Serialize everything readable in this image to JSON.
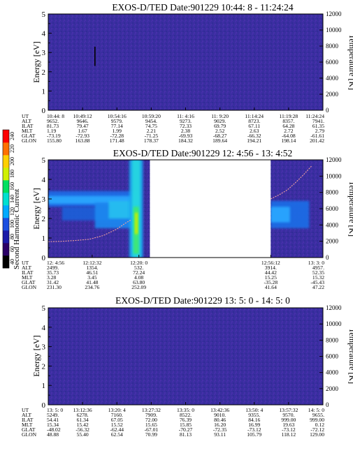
{
  "colorbar": {
    "label": "Second Harmonic Current",
    "ticks": [
      "40",
      "60",
      "80",
      "100",
      "120",
      "140",
      "160",
      "180",
      "200",
      "220",
      "240"
    ],
    "colors": [
      "#000000",
      "#2a0066",
      "#1a1aa8",
      "#1a4ee0",
      "#00aaff",
      "#00e0d0",
      "#00e060",
      "#d0f000",
      "#ffd000",
      "#ff7000",
      "#ff0000"
    ]
  },
  "chart_data": [
    {
      "type": "heatmap",
      "title": "EXOS-D/TED   Date:901229   10:44: 8 - 11:24:24",
      "ylabel": "Energy [eV]",
      "y2label": "Temperature [K]",
      "ylim": [
        0,
        5
      ],
      "y2lim": [
        0,
        12000
      ],
      "yticks": [
        "0",
        "1",
        "2",
        "3",
        "4",
        "5"
      ],
      "y2ticks": [
        "0",
        "2000",
        "4000",
        "6000",
        "8000",
        "10000",
        "12000"
      ],
      "background": "#3a2ea0",
      "segments": [
        [
          0,
          1
        ]
      ],
      "features": [
        {
          "kind": "vline",
          "x": 0.17,
          "y0": 2.3,
          "y1": 3.3,
          "color": "#000000"
        }
      ],
      "temperature_curve": [],
      "ephemeris": {
        "labels": [
          "UT",
          "ALT",
          "ILAT",
          "MLT",
          "GLAT",
          "GLON"
        ],
        "columns": [
          [
            "10:44: 8",
            "9652.",
            "81.73",
            "1.19",
            "-73.19",
            "155.80"
          ],
          [
            "10:49:12",
            "9646.",
            "79.47",
            "1.67",
            "-72.93",
            "163.88"
          ],
          [
            "10:54:16",
            "9579.",
            "77.14",
            "1.99",
            "-72.28",
            "171.48"
          ],
          [
            "10:59:20",
            "9454.",
            "74.75",
            "2.21",
            "-71.25",
            "178.37"
          ],
          [
            "11: 4:16",
            "9273.",
            "72.33",
            "2.38",
            "-69.93",
            "184.32"
          ],
          [
            "11: 9:20",
            "9029.",
            "69.79",
            "2.52",
            "-68.27",
            "189.64"
          ],
          [
            "11:14:24",
            "8723.",
            "67.11",
            "2.63",
            "-66.32",
            "194.21"
          ],
          [
            "11:19:28",
            "8357.",
            "64.28",
            "2.72",
            "-64.08",
            "198.14"
          ],
          [
            "11:24:24",
            "7941.",
            "61.35",
            "2.79",
            "-61.61",
            "201.42"
          ]
        ]
      }
    },
    {
      "type": "heatmap",
      "title": "EXOS-D/TED   Date:901229  12: 4:56 - 13: 4:52",
      "ylabel": "Energy [eV]",
      "y2label": "Temperature [K]",
      "ylim": [
        0,
        5
      ],
      "y2lim": [
        0,
        12000
      ],
      "yticks": [
        "0",
        "1",
        "2",
        "3",
        "4",
        "5"
      ],
      "y2ticks": [
        "0",
        "2000",
        "4000",
        "6000",
        "8000",
        "10000",
        "12000"
      ],
      "background": "#3a2ea0",
      "segments": [
        [
          0,
          0.37
        ],
        [
          0.81,
          1
        ]
      ],
      "features": [
        {
          "kind": "band",
          "x0": 0.0,
          "x1": 0.33,
          "y0": 2.6,
          "y1": 3.4,
          "color": "#1f6ee8"
        },
        {
          "kind": "band",
          "x0": 0.0,
          "x1": 0.33,
          "y0": 2.75,
          "y1": 3.15,
          "color": "#2aa8ff"
        },
        {
          "kind": "band",
          "x0": 0.05,
          "x1": 0.33,
          "y0": 1.9,
          "y1": 2.6,
          "color": "#1f5fd8"
        },
        {
          "kind": "band",
          "x0": 0.17,
          "x1": 0.33,
          "y0": 1.5,
          "y1": 2.8,
          "color": "#1e88f0"
        },
        {
          "kind": "band",
          "x0": 0.22,
          "x1": 0.33,
          "y0": 2.0,
          "y1": 2.9,
          "color": "#28c0f0"
        },
        {
          "kind": "band",
          "x0": 0.295,
          "x1": 0.345,
          "y0": 0,
          "y1": 5,
          "color": "#1da8f0"
        },
        {
          "kind": "band",
          "x0": 0.305,
          "x1": 0.335,
          "y0": 0,
          "y1": 5,
          "color": "#28d8e0"
        },
        {
          "kind": "band",
          "x0": 0.31,
          "x1": 0.33,
          "y0": 0.2,
          "y1": 2.6,
          "color": "#40e870"
        },
        {
          "kind": "band",
          "x0": 0.315,
          "x1": 0.327,
          "y0": 1.2,
          "y1": 2.3,
          "color": "#c8f000"
        },
        {
          "kind": "band",
          "x0": 0.81,
          "x1": 0.95,
          "y0": 1.5,
          "y1": 2.9,
          "color": "#1e6ee6"
        },
        {
          "kind": "band",
          "x0": 0.81,
          "x1": 0.88,
          "y0": 1.8,
          "y1": 2.6,
          "color": "#2aa8ff"
        }
      ],
      "temperature_curve": [
        {
          "seg": 0,
          "x": [
            0.0,
            0.05,
            0.1,
            0.15,
            0.2,
            0.25,
            0.28,
            0.3
          ],
          "y": [
            1950,
            2000,
            2100,
            2250,
            2700,
            3500,
            4200,
            4600
          ]
        },
        {
          "seg": 1,
          "x": [
            0.81,
            0.84,
            0.87,
            0.9,
            0.93,
            0.96
          ],
          "y": [
            7200,
            7700,
            8300,
            9200,
            10200,
            11300
          ]
        }
      ],
      "ephemeris": {
        "labels": [
          "UT",
          "ALT",
          "ILAT",
          "MLT",
          "GLAT",
          "GLON"
        ],
        "columns": [
          [
            "12: 4:56",
            "2499.",
            "35.73",
            "3.28",
            "31.42",
            "231.30"
          ],
          [
            "12:12:32",
            "1354.",
            "46.51",
            "3.45",
            "41.48",
            "234.76"
          ],
          [
            "12:20: 0",
            "532.",
            "72.24",
            "4.08",
            "63.80",
            "252.09"
          ],
          [
            "12:56:12",
            "3914.",
            "44.42",
            "15.25",
            "-35.28",
            "41.64"
          ],
          [
            "13: 3: 0",
            "4957.",
            "52.35",
            "15.32",
            "-45.43",
            "47.22"
          ]
        ],
        "positions": [
          0.0,
          0.16,
          0.33,
          0.81,
          1.0
        ]
      }
    },
    {
      "type": "heatmap",
      "title": "EXOS-D/TED   Date:901229  13: 5: 0 - 14: 5: 0",
      "ylabel": "Energy [eV]",
      "y2label": "Temperature [K]",
      "ylim": [
        0,
        5
      ],
      "y2lim": [
        0,
        12000
      ],
      "yticks": [
        "0",
        "1",
        "2",
        "3",
        "4",
        "5"
      ],
      "y2ticks": [
        "0",
        "2000",
        "4000",
        "6000",
        "8000",
        "10000",
        "12000"
      ],
      "background": "#3a2ea0",
      "segments": [
        [
          0,
          1
        ]
      ],
      "features": [],
      "temperature_curve": [],
      "ephemeris": {
        "labels": [
          "UT",
          "ALT",
          "ILAT",
          "MLT",
          "GLAT",
          "GLON"
        ],
        "columns": [
          [
            "13: 5: 0",
            "5249.",
            "54.41",
            "15.34",
            "-48.02",
            "48.88"
          ],
          [
            "13:12:36",
            "6278.",
            "61.34",
            "15.42",
            "-56.32",
            "55.40"
          ],
          [
            "13:20: 4",
            "7160.",
            "67.05",
            "15.52",
            "-62.44",
            "62.54"
          ],
          [
            "13:27:32",
            "7909.",
            "72.00",
            "15.65",
            "-67.01",
            "70.99"
          ],
          [
            "13:35: 0",
            "8522.",
            "76.39",
            "15.85",
            "-70.27",
            "81.13"
          ],
          [
            "13:42:36",
            "9010.",
            "80.46",
            "16.20",
            "-72.35",
            "93.11"
          ],
          [
            "13:50: 4",
            "9355.",
            "84.16",
            "16.99",
            "-73.12",
            "105.79"
          ],
          [
            "13:57:32",
            "9570.",
            "999.00",
            "19.63",
            "-73.12",
            "118.12"
          ],
          [
            "14: 5: 0",
            "9655.",
            "999.00",
            "0.12",
            "-72.12",
            "129.00"
          ]
        ]
      }
    }
  ]
}
